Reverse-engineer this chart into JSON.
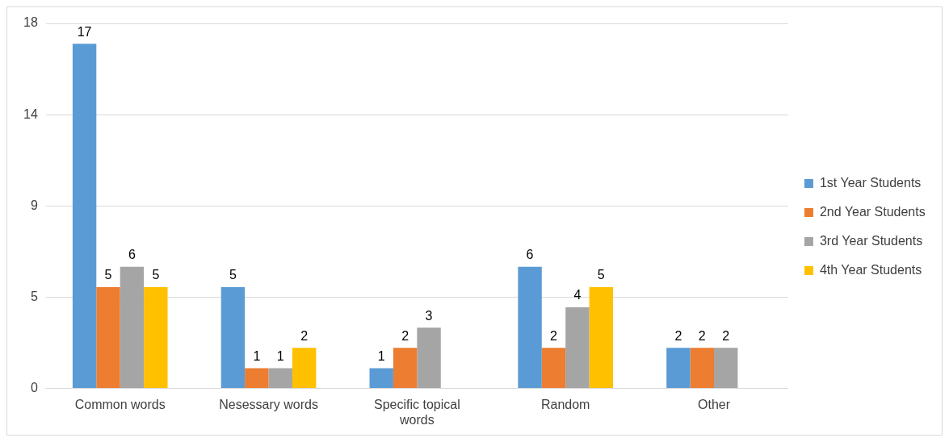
{
  "chart_data": {
    "type": "bar",
    "categories": [
      "Common words",
      "Nesessary words",
      "Specific topical words",
      "Random",
      "Other"
    ],
    "series": [
      {
        "name": "1st Year Students",
        "color": "#5b9bd5",
        "values": [
          17,
          5,
          1,
          6,
          2
        ]
      },
      {
        "name": "2nd Year Students",
        "color": "#ed7d31",
        "values": [
          5,
          1,
          2,
          2,
          2
        ]
      },
      {
        "name": "3rd Year Students",
        "color": "#a5a5a5",
        "values": [
          6,
          1,
          3,
          4,
          2
        ]
      },
      {
        "name": "4th Year Students",
        "color": "#ffc000",
        "values": [
          5,
          2,
          null,
          5,
          null
        ]
      }
    ],
    "ylim": [
      0,
      18
    ],
    "yticks": [
      0,
      {
        "value": 4.5,
        "label": "5"
      },
      9,
      {
        "value": 13.5,
        "label": "14"
      },
      18
    ],
    "grid": "y",
    "legend": "right",
    "data_labels": true
  }
}
